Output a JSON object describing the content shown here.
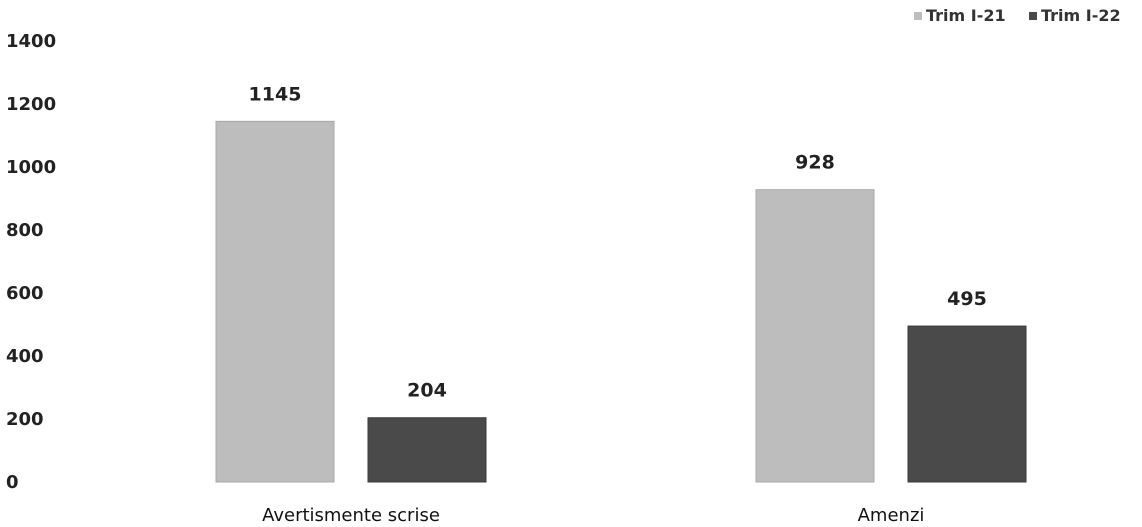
{
  "chart_data": {
    "type": "bar",
    "categories": [
      "Avertismente scrise",
      "Amenzi"
    ],
    "series": [
      {
        "name": "Trim I-21",
        "values": [
          1145,
          928
        ],
        "color": "#bdbdbd"
      },
      {
        "name": "Trim I-22",
        "values": [
          204,
          495
        ],
        "color": "#4a4a4a"
      }
    ],
    "ylim": [
      0,
      1400
    ],
    "yticks": [
      0,
      200,
      400,
      600,
      800,
      1000,
      1200,
      1400
    ],
    "grid": false,
    "legend_position": "top-right",
    "data_labels": true
  }
}
